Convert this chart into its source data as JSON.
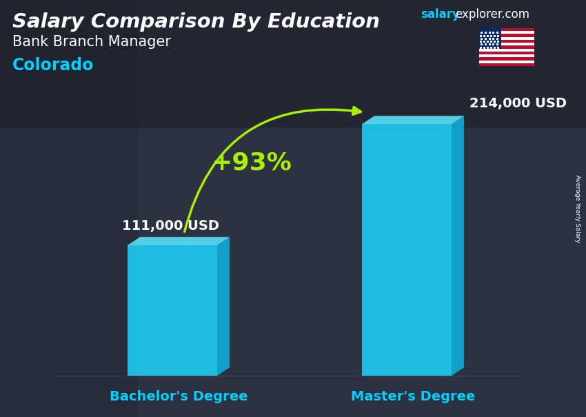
{
  "title_main": "Salary Comparison By Education",
  "subtitle1": "Bank Branch Manager",
  "subtitle2": "Colorado",
  "subtitle2_color": "#00cfff",
  "categories": [
    "Bachelor's Degree",
    "Master's Degree"
  ],
  "values": [
    111000,
    214000
  ],
  "value_labels": [
    "111,000 USD",
    "214,000 USD"
  ],
  "bar_color_front": "#1ec8f0",
  "bar_color_top": "#55ddf5",
  "bar_color_right": "#0eaad4",
  "bar_color_left": "#0da0c8",
  "pct_label": "+93%",
  "pct_color": "#aaee00",
  "arrow_color": "#aaee00",
  "xlabel_color": "#00cfff",
  "side_label": "Average Yearly Salary",
  "watermark_salary": "salary",
  "watermark_rest": "explorer.com",
  "watermark_salary_color": "#00cfff",
  "watermark_rest_color": "#ffffff",
  "title_color": "#ffffff",
  "subtitle1_color": "#ffffff",
  "value_label_color": "#ffffff",
  "bg_color": "#2a3040",
  "title_fontsize": 21,
  "subtitle1_fontsize": 15,
  "subtitle2_fontsize": 17,
  "value_fontsize": 14,
  "xlabel_fontsize": 14,
  "pct_fontsize": 26,
  "watermark_fontsize": 12
}
